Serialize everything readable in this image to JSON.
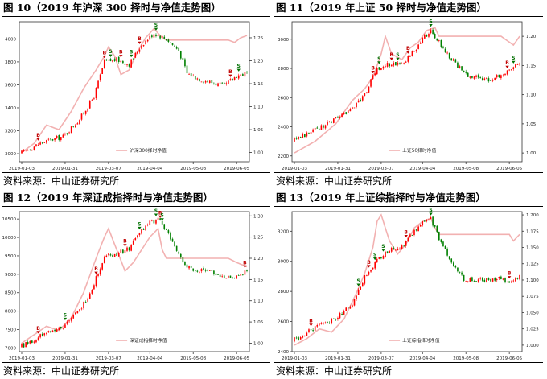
{
  "colors": {
    "up": "#ff0000",
    "down": "#008000",
    "nav": "#f2b1b1",
    "buy": "#c00000",
    "sell": "#007000"
  },
  "chart_data": [
    {
      "type": "candlestick+line",
      "fig_label": "图 10",
      "title": "（2019 年沪深 300 择时与净值走势图）",
      "source": "资料来源：中山证券研究所",
      "legend": "沪深300择时净值",
      "legend_position": "bottom-right",
      "x_ticks": [
        "2019-01-03",
        "2019-01-31",
        "2019-03-07",
        "2019-04-04",
        "2019-05-08",
        "2019-06-05"
      ],
      "y_left_ticks": [
        3000,
        3200,
        3400,
        3600,
        3800,
        4000
      ],
      "y_left_range": [
        2930,
        4150
      ],
      "y_right_ticks": [
        1.0,
        1.05,
        1.1,
        1.15,
        1.2,
        1.25
      ],
      "y_right_range": [
        0.98,
        1.285
      ],
      "n_days": 110,
      "price_anchors": [
        [
          0,
          3010
        ],
        [
          10,
          3100
        ],
        [
          20,
          3150
        ],
        [
          28,
          3300
        ],
        [
          35,
          3500
        ],
        [
          40,
          3800
        ],
        [
          46,
          3820
        ],
        [
          52,
          3780
        ],
        [
          58,
          3950
        ],
        [
          64,
          4050
        ],
        [
          70,
          4000
        ],
        [
          76,
          3900
        ],
        [
          80,
          3700
        ],
        [
          86,
          3650
        ],
        [
          92,
          3620
        ],
        [
          98,
          3590
        ],
        [
          104,
          3680
        ],
        [
          109,
          3700
        ]
      ],
      "nav_anchors": [
        [
          0,
          1.0
        ],
        [
          6,
          1.02
        ],
        [
          12,
          1.06
        ],
        [
          18,
          1.05
        ],
        [
          24,
          1.09
        ],
        [
          30,
          1.14
        ],
        [
          36,
          1.18
        ],
        [
          40,
          1.21
        ],
        [
          42,
          1.23
        ],
        [
          45,
          1.21
        ],
        [
          48,
          1.17
        ],
        [
          52,
          1.18
        ],
        [
          56,
          1.22
        ],
        [
          60,
          1.25
        ],
        [
          64,
          1.27
        ],
        [
          68,
          1.25
        ],
        [
          70,
          1.245
        ],
        [
          100,
          1.245
        ],
        [
          103,
          1.24
        ],
        [
          106,
          1.25
        ],
        [
          109,
          1.255
        ]
      ],
      "buy_signals": [
        8,
        40,
        48,
        57,
        101
      ],
      "sell_signals": [
        43,
        53,
        65,
        105
      ]
    },
    {
      "type": "candlestick+line",
      "fig_label": "图 11",
      "title": "（2019 年上证 50 择时与净值走势图）",
      "source": "资料来源：中山证券研究所",
      "legend": "上证50择时净值",
      "legend_position": "bottom-right",
      "x_ticks": [
        "2019-01-03",
        "2019-01-31",
        "2019-03-07",
        "2019-04-04",
        "2019-05-08",
        "2019-06-05"
      ],
      "y_left_ticks": [
        2200,
        2400,
        2600,
        2800,
        3000
      ],
      "y_left_range": [
        2160,
        3120
      ],
      "y_right_ticks": [
        1.0,
        1.05,
        1.1,
        1.15,
        1.2
      ],
      "y_right_range": [
        0.985,
        1.225
      ],
      "n_days": 110,
      "price_anchors": [
        [
          0,
          2310
        ],
        [
          10,
          2380
        ],
        [
          20,
          2450
        ],
        [
          28,
          2530
        ],
        [
          34,
          2620
        ],
        [
          40,
          2800
        ],
        [
          46,
          2830
        ],
        [
          52,
          2830
        ],
        [
          58,
          2920
        ],
        [
          62,
          3000
        ],
        [
          66,
          3060
        ],
        [
          70,
          2980
        ],
        [
          74,
          2900
        ],
        [
          78,
          2840
        ],
        [
          82,
          2760
        ],
        [
          88,
          2740
        ],
        [
          94,
          2720
        ],
        [
          100,
          2760
        ],
        [
          104,
          2780
        ],
        [
          109,
          2850
        ]
      ],
      "nav_anchors": [
        [
          0,
          1.0
        ],
        [
          10,
          1.02
        ],
        [
          20,
          1.05
        ],
        [
          28,
          1.09
        ],
        [
          34,
          1.11
        ],
        [
          38,
          1.13
        ],
        [
          42,
          1.17
        ],
        [
          44,
          1.2
        ],
        [
          47,
          1.17
        ],
        [
          52,
          1.16
        ],
        [
          56,
          1.18
        ],
        [
          60,
          1.19
        ],
        [
          64,
          1.21
        ],
        [
          68,
          1.215
        ],
        [
          70,
          1.2
        ],
        [
          100,
          1.2
        ],
        [
          104,
          1.19
        ],
        [
          106,
          1.185
        ],
        [
          109,
          1.2
        ]
      ],
      "buy_signals": [
        38,
        47,
        55,
        103
      ],
      "sell_signals": [
        41,
        50,
        66,
        106
      ]
    },
    {
      "type": "candlestick+line",
      "fig_label": "图 12",
      "title": "（2019 年深证成指择时与净值走势图）",
      "source": "资料来源：中山证券研究所",
      "legend": "深证成指择时净值",
      "legend_position": "bottom-right",
      "x_ticks": [
        "2019-01-03",
        "2019-01-31",
        "2019-03-07",
        "2019-04-04",
        "2019-05-08",
        "2019-06-05"
      ],
      "y_left_ticks": [
        7000,
        7500,
        8000,
        8500,
        9000,
        9500,
        10000,
        10500
      ],
      "y_left_range": [
        6900,
        10700
      ],
      "y_right_ticks": [
        1.0,
        1.05,
        1.1,
        1.15,
        1.2,
        1.25,
        1.3
      ],
      "y_right_range": [
        0.98,
        1.31
      ],
      "n_days": 110,
      "price_anchors": [
        [
          0,
          7050
        ],
        [
          10,
          7350
        ],
        [
          20,
          7600
        ],
        [
          28,
          8000
        ],
        [
          34,
          8600
        ],
        [
          40,
          9500
        ],
        [
          46,
          9550
        ],
        [
          52,
          9700
        ],
        [
          58,
          10200
        ],
        [
          62,
          10400
        ],
        [
          66,
          10500
        ],
        [
          70,
          10200
        ],
        [
          74,
          9700
        ],
        [
          80,
          9200
        ],
        [
          86,
          9100
        ],
        [
          92,
          9050
        ],
        [
          98,
          8900
        ],
        [
          104,
          8950
        ],
        [
          109,
          9100
        ]
      ],
      "nav_anchors": [
        [
          0,
          1.0
        ],
        [
          6,
          1.02
        ],
        [
          12,
          1.04
        ],
        [
          18,
          1.03
        ],
        [
          24,
          1.06
        ],
        [
          30,
          1.12
        ],
        [
          36,
          1.2
        ],
        [
          40,
          1.25
        ],
        [
          42,
          1.27
        ],
        [
          46,
          1.22
        ],
        [
          50,
          1.17
        ],
        [
          54,
          1.19
        ],
        [
          58,
          1.22
        ],
        [
          62,
          1.25
        ],
        [
          66,
          1.27
        ],
        [
          68,
          1.22
        ],
        [
          70,
          1.2
        ],
        [
          100,
          1.2
        ],
        [
          104,
          1.19
        ],
        [
          109,
          1.18
        ]
      ],
      "buy_signals": [
        8,
        36,
        50,
        67,
        108
      ],
      "sell_signals": [
        21,
        57,
        65,
        68
      ]
    },
    {
      "type": "candlestick+line",
      "fig_label": "图 13",
      "title": "（2019 年上证综指择时与净值走势图）",
      "source": "资料来源：中山证券研究所",
      "legend": "上证综指择时净值",
      "legend_position": "bottom-right",
      "x_ticks": [
        "2019-01-03",
        "2019-01-31",
        "2019-03-07",
        "2019-04-04",
        "2019-05-08",
        "2019-06-05"
      ],
      "y_left_ticks": [
        2400,
        2600,
        2800,
        3000,
        3200
      ],
      "y_left_range": [
        2400,
        3330
      ],
      "y_right_ticks": [
        1.0,
        1.025,
        1.05,
        1.075,
        1.1,
        1.125,
        1.15,
        1.175,
        1.2
      ],
      "y_right_range": [
        0.99,
        1.205
      ],
      "n_days": 110,
      "price_anchors": [
        [
          0,
          2480
        ],
        [
          10,
          2560
        ],
        [
          20,
          2620
        ],
        [
          28,
          2720
        ],
        [
          34,
          2900
        ],
        [
          40,
          3000
        ],
        [
          46,
          3080
        ],
        [
          52,
          3100
        ],
        [
          58,
          3200
        ],
        [
          62,
          3250
        ],
        [
          66,
          3280
        ],
        [
          70,
          3150
        ],
        [
          74,
          3050
        ],
        [
          78,
          2950
        ],
        [
          82,
          2880
        ],
        [
          88,
          2870
        ],
        [
          94,
          2880
        ],
        [
          100,
          2890
        ],
        [
          104,
          2860
        ],
        [
          109,
          2900
        ]
      ],
      "nav_anchors": [
        [
          0,
          1.0
        ],
        [
          6,
          1.01
        ],
        [
          12,
          1.025
        ],
        [
          18,
          1.02
        ],
        [
          24,
          1.04
        ],
        [
          30,
          1.08
        ],
        [
          34,
          1.11
        ],
        [
          38,
          1.15
        ],
        [
          40,
          1.19
        ],
        [
          42,
          1.2
        ],
        [
          46,
          1.16
        ],
        [
          50,
          1.14
        ],
        [
          54,
          1.155
        ],
        [
          58,
          1.18
        ],
        [
          62,
          1.19
        ],
        [
          66,
          1.195
        ],
        [
          68,
          1.18
        ],
        [
          70,
          1.17
        ],
        [
          100,
          1.17
        ],
        [
          104,
          1.17
        ],
        [
          106,
          1.16
        ],
        [
          109,
          1.17
        ]
      ],
      "buy_signals": [
        8,
        36,
        54,
        104
      ],
      "sell_signals": [
        31,
        39,
        43,
        66
      ]
    }
  ]
}
